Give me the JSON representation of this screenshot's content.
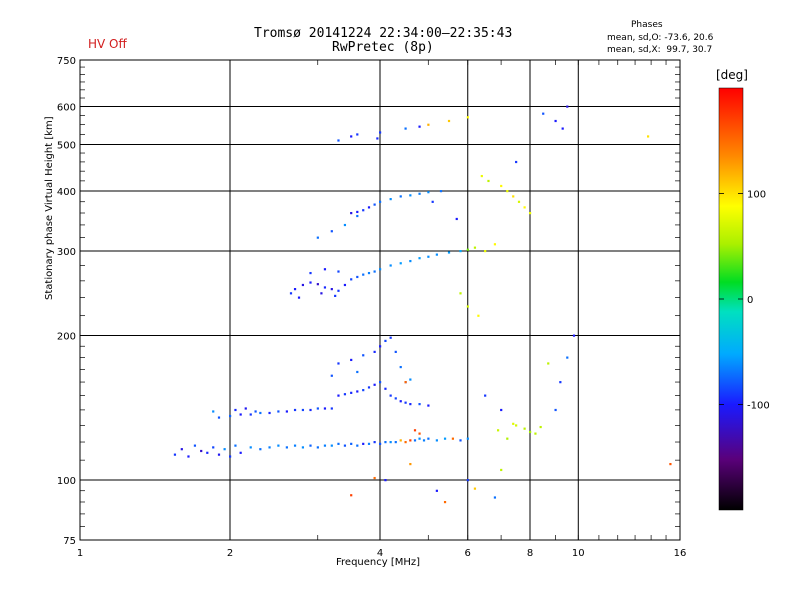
{
  "header": {
    "hv_status": "HV Off",
    "title_line1": "Tromsø 20141224 22:34:00–22:35:43",
    "title_line2": "RwPretec (8p)",
    "phases_title": "Phases",
    "phases_o": "mean, sd,O: -73.6, 20.6",
    "phases_x": "mean, sd,X:  99.7, 30.7"
  },
  "colorbar": {
    "unit": "[deg]",
    "min": -200,
    "max": 200,
    "ticks": [
      100,
      0,
      -100
    ],
    "tick_labels": [
      "100",
      "0",
      "-100"
    ]
  },
  "chart_data": {
    "type": "scatter",
    "xlabel": "Frequency [MHz]",
    "ylabel": "Stationary phase Virtual Height [km]",
    "x_scale": "log",
    "y_scale": "log",
    "xlim": [
      1,
      16
    ],
    "ylim": [
      75,
      750
    ],
    "x_ticks": [
      1,
      2,
      4,
      6,
      8,
      10,
      16
    ],
    "x_tick_labels": [
      "1",
      "2",
      "4",
      "6",
      "8",
      "10",
      "16"
    ],
    "y_ticks": [
      75,
      100,
      200,
      300,
      400,
      500,
      600,
      750
    ],
    "y_tick_labels": [
      "75",
      "100",
      "200",
      "300",
      "400",
      "500",
      "600",
      "750"
    ],
    "grid": true,
    "color_by": "phase [deg]",
    "points": [
      [
        1.55,
        113,
        -90
      ],
      [
        1.6,
        116,
        -110
      ],
      [
        1.65,
        112,
        -100
      ],
      [
        1.7,
        118,
        -80
      ],
      [
        1.75,
        115,
        -120
      ],
      [
        1.8,
        114,
        -95
      ],
      [
        1.85,
        117,
        -85
      ],
      [
        1.9,
        113,
        -105
      ],
      [
        1.95,
        116,
        -60
      ],
      [
        2.0,
        112,
        -90
      ],
      [
        2.05,
        118,
        -70
      ],
      [
        2.1,
        114,
        -100
      ],
      [
        2.2,
        117,
        -60
      ],
      [
        2.3,
        116,
        -70
      ],
      [
        2.4,
        117,
        -65
      ],
      [
        2.5,
        118,
        -60
      ],
      [
        2.6,
        117,
        -70
      ],
      [
        2.7,
        118,
        -65
      ],
      [
        2.8,
        117,
        -60
      ],
      [
        2.9,
        118,
        -75
      ],
      [
        3.0,
        117,
        -70
      ],
      [
        3.1,
        118,
        -65
      ],
      [
        3.2,
        118,
        -60
      ],
      [
        3.3,
        119,
        -70
      ],
      [
        3.4,
        118,
        -80
      ],
      [
        3.5,
        119,
        -75
      ],
      [
        3.6,
        118,
        -70
      ],
      [
        3.7,
        119,
        -100
      ],
      [
        3.8,
        119,
        -65
      ],
      [
        3.9,
        120,
        -90
      ],
      [
        4.0,
        119,
        -80
      ],
      [
        4.1,
        120,
        -70
      ],
      [
        4.2,
        120,
        -60
      ],
      [
        4.3,
        120,
        -70
      ],
      [
        4.4,
        121,
        120
      ],
      [
        4.5,
        120,
        150
      ],
      [
        4.6,
        121,
        170
      ],
      [
        4.7,
        121,
        -70
      ],
      [
        4.8,
        122,
        -60
      ],
      [
        4.9,
        121,
        -65
      ],
      [
        5.0,
        122,
        -70
      ],
      [
        5.2,
        121,
        -60
      ],
      [
        5.4,
        122,
        -55
      ],
      [
        5.6,
        122,
        150
      ],
      [
        5.8,
        121,
        -80
      ],
      [
        6.0,
        122,
        -60
      ],
      [
        1.9,
        135,
        -80
      ],
      [
        2.0,
        136,
        -75
      ],
      [
        2.1,
        137,
        -100
      ],
      [
        2.2,
        137,
        -90
      ],
      [
        2.3,
        138,
        -70
      ],
      [
        2.4,
        138,
        -95
      ],
      [
        2.5,
        139,
        -80
      ],
      [
        2.6,
        139,
        -100
      ],
      [
        2.7,
        140,
        -90
      ],
      [
        2.8,
        140,
        -85
      ],
      [
        2.9,
        140,
        -95
      ],
      [
        3.0,
        141,
        -80
      ],
      [
        3.1,
        141,
        -100
      ],
      [
        3.2,
        141,
        -90
      ],
      [
        1.85,
        139,
        -60
      ],
      [
        2.05,
        140,
        -95
      ],
      [
        2.15,
        141,
        -105
      ],
      [
        2.25,
        139,
        -80
      ],
      [
        3.3,
        150,
        -100
      ],
      [
        3.4,
        151,
        -90
      ],
      [
        3.5,
        152,
        -95
      ],
      [
        3.6,
        153,
        -100
      ],
      [
        3.7,
        154,
        -85
      ],
      [
        3.8,
        156,
        -90
      ],
      [
        3.9,
        158,
        -100
      ],
      [
        4.0,
        160,
        -80
      ],
      [
        4.1,
        155,
        -95
      ],
      [
        4.2,
        150,
        -90
      ],
      [
        4.3,
        148,
        -85
      ],
      [
        4.4,
        146,
        -100
      ],
      [
        4.5,
        145,
        -90
      ],
      [
        4.6,
        144,
        -95
      ],
      [
        4.8,
        144,
        -80
      ],
      [
        5.0,
        143,
        -100
      ],
      [
        3.3,
        175,
        -90
      ],
      [
        3.5,
        178,
        -100
      ],
      [
        3.7,
        182,
        -80
      ],
      [
        3.9,
        185,
        -95
      ],
      [
        4.0,
        190,
        -100
      ],
      [
        4.1,
        195,
        -85
      ],
      [
        4.2,
        198,
        -90
      ],
      [
        4.3,
        185,
        -80
      ],
      [
        4.4,
        172,
        -70
      ],
      [
        4.5,
        160,
        -90
      ],
      [
        3.2,
        165,
        -80
      ],
      [
        3.6,
        168,
        -70
      ],
      [
        4.6,
        162,
        -60
      ],
      [
        2.65,
        245,
        -90
      ],
      [
        2.7,
        250,
        -100
      ],
      [
        2.8,
        255,
        -110
      ],
      [
        2.9,
        258,
        -100
      ],
      [
        3.0,
        256,
        -120
      ],
      [
        3.1,
        252,
        -95
      ],
      [
        3.2,
        250,
        -110
      ],
      [
        3.3,
        248,
        -90
      ],
      [
        3.4,
        255,
        -100
      ],
      [
        3.5,
        262,
        -85
      ],
      [
        3.6,
        265,
        -80
      ],
      [
        3.7,
        268,
        -70
      ],
      [
        3.8,
        270,
        -65
      ],
      [
        3.9,
        272,
        -70
      ],
      [
        4.0,
        275,
        -60
      ],
      [
        4.2,
        280,
        -60
      ],
      [
        4.4,
        283,
        -55
      ],
      [
        4.6,
        286,
        -60
      ],
      [
        4.8,
        290,
        -55
      ],
      [
        5.0,
        292,
        -60
      ],
      [
        5.2,
        295,
        -60
      ],
      [
        5.5,
        298,
        -55
      ],
      [
        5.8,
        300,
        -50
      ],
      [
        6.0,
        302,
        40
      ],
      [
        6.2,
        305,
        60
      ],
      [
        6.5,
        300,
        80
      ],
      [
        6.8,
        310,
        90
      ],
      [
        2.75,
        240,
        -100
      ],
      [
        3.05,
        245,
        -110
      ],
      [
        3.25,
        242,
        -90
      ],
      [
        2.9,
        270,
        -90
      ],
      [
        3.1,
        275,
        -100
      ],
      [
        3.3,
        272,
        -85
      ],
      [
        3.0,
        320,
        -70
      ],
      [
        3.2,
        330,
        -80
      ],
      [
        3.4,
        340,
        -60
      ],
      [
        3.6,
        355,
        -70
      ],
      [
        3.7,
        365,
        -90
      ],
      [
        3.8,
        370,
        -100
      ],
      [
        3.9,
        375,
        -80
      ],
      [
        4.0,
        380,
        -70
      ],
      [
        4.2,
        385,
        -60
      ],
      [
        4.4,
        390,
        -70
      ],
      [
        4.6,
        392,
        -60
      ],
      [
        4.8,
        395,
        -65
      ],
      [
        5.0,
        398,
        -60
      ],
      [
        5.3,
        400,
        -70
      ],
      [
        3.5,
        360,
        -110
      ],
      [
        3.6,
        362,
        -100
      ],
      [
        3.3,
        510,
        -80
      ],
      [
        3.5,
        520,
        -100
      ],
      [
        3.6,
        525,
        -90
      ],
      [
        4.5,
        540,
        -70
      ],
      [
        4.8,
        545,
        -100
      ],
      [
        5.0,
        550,
        120
      ],
      [
        5.5,
        560,
        110
      ],
      [
        6.0,
        570,
        90
      ],
      [
        6.4,
        430,
        80
      ],
      [
        6.6,
        420,
        60
      ],
      [
        7.0,
        410,
        90
      ],
      [
        7.2,
        400,
        80
      ],
      [
        7.4,
        390,
        100
      ],
      [
        7.6,
        380,
        70
      ],
      [
        7.8,
        370,
        90
      ],
      [
        8.0,
        360,
        80
      ],
      [
        7.5,
        460,
        -90
      ],
      [
        8.5,
        580,
        -80
      ],
      [
        9.0,
        560,
        -100
      ],
      [
        9.5,
        600,
        -110
      ],
      [
        6.5,
        150,
        -90
      ],
      [
        7.0,
        140,
        -100
      ],
      [
        7.5,
        130,
        70
      ],
      [
        7.8,
        128,
        60
      ],
      [
        8.0,
        126,
        50
      ],
      [
        8.2,
        125,
        60
      ],
      [
        7.2,
        122,
        55
      ],
      [
        6.9,
        127,
        65
      ],
      [
        7.4,
        131,
        75
      ],
      [
        8.4,
        129,
        60
      ],
      [
        9.0,
        140,
        -80
      ],
      [
        9.2,
        160,
        -90
      ],
      [
        9.5,
        180,
        -70
      ],
      [
        9.8,
        200,
        -100
      ],
      [
        8.7,
        175,
        60
      ],
      [
        6.0,
        230,
        70
      ],
      [
        5.8,
        245,
        60
      ],
      [
        6.3,
        220,
        90
      ],
      [
        4.6,
        108,
        130
      ],
      [
        5.2,
        95,
        -100
      ],
      [
        6.0,
        100,
        -90
      ],
      [
        4.7,
        127,
        170
      ],
      [
        4.8,
        125,
        160
      ],
      [
        4.5,
        160,
        150
      ],
      [
        5.4,
        90,
        150
      ],
      [
        6.2,
        96,
        110
      ],
      [
        6.8,
        92,
        -70
      ],
      [
        7.0,
        105,
        60
      ],
      [
        3.9,
        101,
        150
      ],
      [
        4.1,
        100,
        -100
      ],
      [
        3.5,
        93,
        170
      ],
      [
        4.0,
        530,
        -90
      ],
      [
        3.95,
        515,
        -95
      ],
      [
        9.3,
        540,
        -100
      ],
      [
        5.1,
        380,
        -90
      ],
      [
        5.7,
        350,
        -100
      ],
      [
        13.8,
        520,
        100
      ],
      [
        15.3,
        108,
        160
      ]
    ]
  }
}
